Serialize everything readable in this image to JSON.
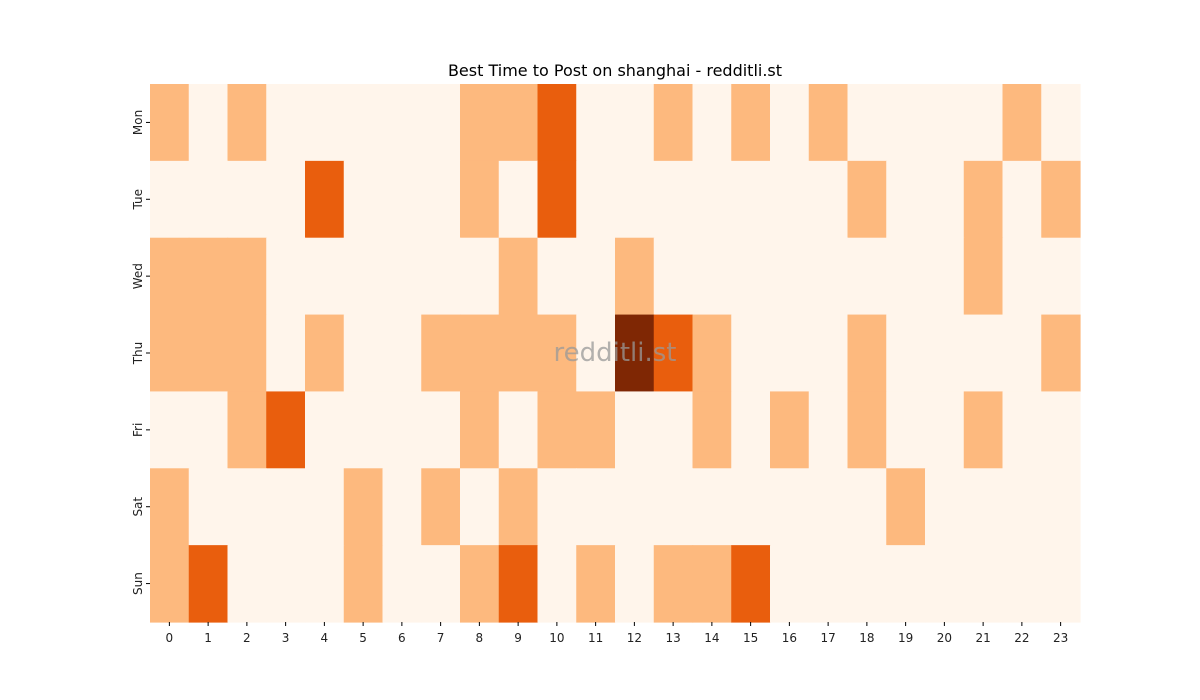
{
  "chart_data": {
    "type": "heatmap",
    "title": "Best Time to Post on shanghai - redditli.st",
    "watermark": "redditli.st",
    "x_categories": [
      "0",
      "1",
      "2",
      "3",
      "4",
      "5",
      "6",
      "7",
      "8",
      "9",
      "10",
      "11",
      "12",
      "13",
      "14",
      "15",
      "16",
      "17",
      "18",
      "19",
      "20",
      "21",
      "22",
      "23"
    ],
    "y_categories": [
      "Mon",
      "Tue",
      "Wed",
      "Thu",
      "Fri",
      "Sat",
      "Sun"
    ],
    "levels": 4,
    "colors": [
      "#fff5eb",
      "#fdb97e",
      "#e95e0d",
      "#7f2704"
    ],
    "values": [
      [
        1,
        0,
        1,
        0,
        0,
        0,
        0,
        0,
        1,
        1,
        2,
        0,
        0,
        1,
        0,
        1,
        0,
        1,
        0,
        0,
        0,
        0,
        1,
        0
      ],
      [
        0,
        0,
        0,
        0,
        2,
        0,
        0,
        0,
        1,
        0,
        2,
        0,
        0,
        0,
        0,
        0,
        0,
        0,
        1,
        0,
        0,
        1,
        0,
        1
      ],
      [
        1,
        1,
        1,
        0,
        0,
        0,
        0,
        0,
        0,
        1,
        0,
        0,
        1,
        0,
        0,
        0,
        0,
        0,
        0,
        0,
        0,
        1,
        0,
        0
      ],
      [
        1,
        1,
        1,
        0,
        1,
        0,
        0,
        1,
        1,
        1,
        1,
        0,
        3,
        2,
        1,
        0,
        0,
        0,
        1,
        0,
        0,
        0,
        0,
        1
      ],
      [
        0,
        0,
        1,
        2,
        0,
        0,
        0,
        0,
        1,
        0,
        1,
        1,
        0,
        0,
        1,
        0,
        1,
        0,
        1,
        0,
        0,
        1,
        0,
        0
      ],
      [
        1,
        0,
        0,
        0,
        0,
        1,
        0,
        1,
        0,
        1,
        0,
        0,
        0,
        0,
        0,
        0,
        0,
        0,
        0,
        1,
        0,
        0,
        0,
        0
      ],
      [
        1,
        2,
        0,
        0,
        0,
        1,
        0,
        0,
        1,
        2,
        0,
        1,
        0,
        1,
        1,
        2,
        0,
        0,
        0,
        0,
        0,
        0,
        0,
        0
      ]
    ]
  }
}
